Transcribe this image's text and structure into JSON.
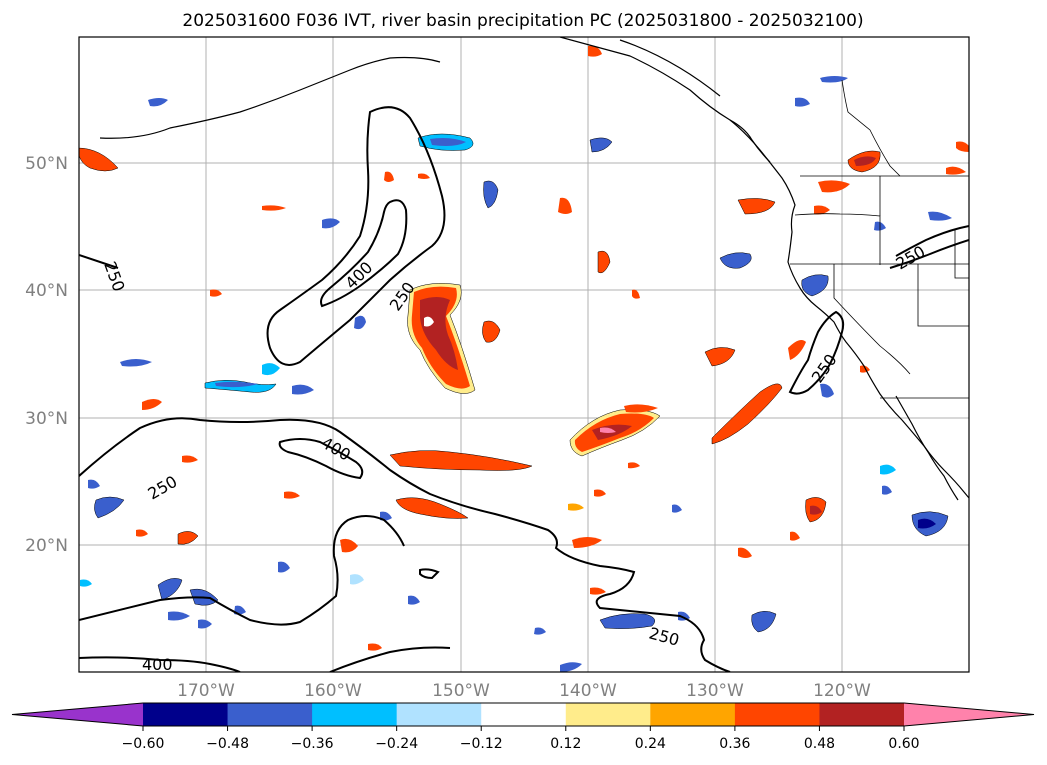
{
  "title": "2025031600 F036 IVT, river basin precipitation PC (2025031800 - 2025032100)",
  "latitude_labels": [
    "50°N",
    "40°N",
    "30°N",
    "20°N"
  ],
  "longitude_labels": [
    "170°W",
    "160°W",
    "150°W",
    "140°W",
    "130°W",
    "120°W"
  ],
  "colorbar": {
    "ticks": [
      "−0.60",
      "−0.48",
      "−0.36",
      "−0.24",
      "−0.12",
      "0.12",
      "0.24",
      "0.36",
      "0.48",
      "0.60"
    ],
    "colors": [
      "#9933cc",
      "#00008b",
      "#3a5fcd",
      "#00bfff",
      "#b0e2ff",
      "#ffffff",
      "#ffec8b",
      "#ffa500",
      "#ff4500",
      "#b22222",
      "#ff82ab"
    ]
  },
  "ivt_contour_labels": [
    "250",
    "400",
    "250",
    "400",
    "250",
    "250",
    "400",
    "250",
    "250"
  ],
  "palette": {
    "neg_light": "#b0e2ff",
    "neg_mid": "#00bfff",
    "neg_strong": "#3a5fcd",
    "neg_max": "#00008b",
    "pos_light": "#ffec8b",
    "pos_mid": "#ffa500",
    "pos_strong": "#ff4500",
    "pos_max": "#b22222",
    "pos_peak": "#ff82ab"
  }
}
